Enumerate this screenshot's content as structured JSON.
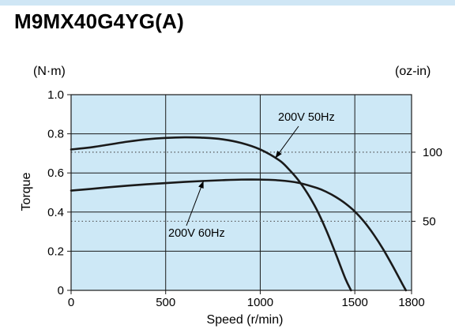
{
  "header": {
    "model": "M9MX40G4YG(A)",
    "band_color": "#cfe6f5"
  },
  "chart_data": {
    "type": "line",
    "title": "",
    "xlabel": "Speed (r/min)",
    "ylabel": "Torque",
    "left_unit": "(N·m)",
    "right_unit": "(oz-in)",
    "xlim": [
      0,
      1800
    ],
    "ylim": [
      0,
      1.0
    ],
    "x_ticks": [
      {
        "value": 0,
        "label": "0"
      },
      {
        "value": 500,
        "label": "500"
      },
      {
        "value": 1000,
        "label": "1000"
      },
      {
        "value": 1500,
        "label": "1500"
      },
      {
        "value": 1800,
        "label": "1800"
      }
    ],
    "y_ticks": [
      {
        "value": 0,
        "label": "0"
      },
      {
        "value": 0.2,
        "label": "0.2"
      },
      {
        "value": 0.4,
        "label": "0.4"
      },
      {
        "value": 0.6,
        "label": "0.6"
      },
      {
        "value": 0.8,
        "label": "0.8"
      },
      {
        "value": 1.0,
        "label": "1.0"
      }
    ],
    "right_ticks": [
      {
        "value": 100,
        "label": "100",
        "nm": 0.706
      },
      {
        "value": 50,
        "label": "50",
        "nm": 0.353
      }
    ],
    "grid": true,
    "plot_background": "#cde8f6",
    "series": [
      {
        "name": "200V 50Hz",
        "x": [
          0,
          100,
          200,
          300,
          400,
          500,
          600,
          700,
          800,
          900,
          1000,
          1100,
          1150,
          1200,
          1250,
          1300,
          1350,
          1400,
          1450,
          1480
        ],
        "values": [
          0.72,
          0.73,
          0.745,
          0.76,
          0.772,
          0.779,
          0.782,
          0.78,
          0.772,
          0.753,
          0.72,
          0.665,
          0.62,
          0.565,
          0.495,
          0.41,
          0.305,
          0.185,
          0.06,
          0.0
        ]
      },
      {
        "name": "200V 60Hz",
        "x": [
          0,
          100,
          200,
          300,
          400,
          500,
          600,
          700,
          800,
          900,
          1000,
          1100,
          1200,
          1300,
          1350,
          1400,
          1450,
          1500,
          1550,
          1600,
          1650,
          1700,
          1750,
          1770
        ],
        "values": [
          0.51,
          0.518,
          0.527,
          0.535,
          0.542,
          0.548,
          0.554,
          0.559,
          0.563,
          0.566,
          0.566,
          0.562,
          0.55,
          0.523,
          0.503,
          0.477,
          0.444,
          0.403,
          0.35,
          0.285,
          0.21,
          0.125,
          0.035,
          0.0
        ]
      }
    ],
    "annotations": [
      {
        "text": "200V 50Hz",
        "series": "200V 50Hz",
        "at_x": 1080
      },
      {
        "text": "200V 60Hz",
        "series": "200V 60Hz",
        "at_x": 700
      }
    ],
    "colors": {
      "curve": "#1a1a1a",
      "grid": "#1a1a1a",
      "reference_line": "#555555"
    }
  }
}
